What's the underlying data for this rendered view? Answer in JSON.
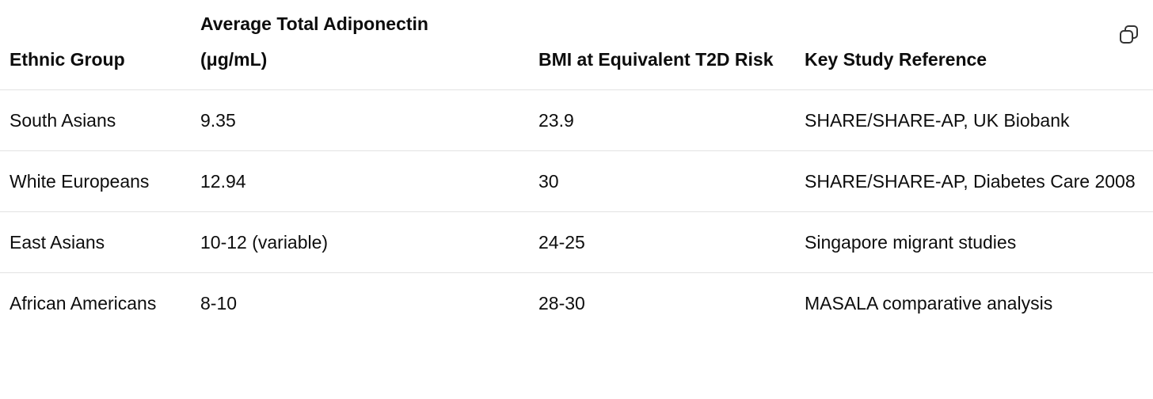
{
  "table": {
    "header": [
      "Ethnic Group",
      "Average Total Adiponectin (μg/mL)",
      "BMI at Equivalent T2D Risk",
      "Key Study Reference"
    ],
    "rows": [
      [
        "South Asians",
        "9.35",
        "23.9",
        "SHARE/SHARE-AP, UK Biobank"
      ],
      [
        "White Europeans",
        "12.94",
        "30",
        "SHARE/SHARE-AP, Diabetes Care 2008"
      ],
      [
        "East Asians",
        "10-12 (variable)",
        "24-25",
        "Singapore migrant studies"
      ],
      [
        "African Americans",
        "8-10",
        "28-30",
        "MASALA comparative analysis"
      ]
    ]
  }
}
